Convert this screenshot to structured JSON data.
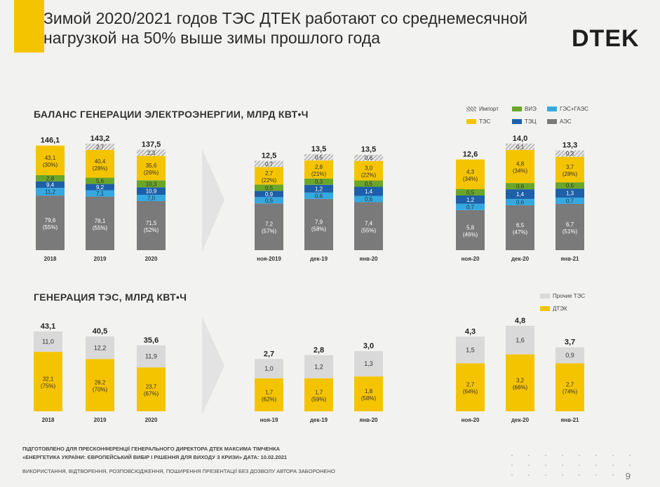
{
  "title": "Зимой 2020/2021 годов ТЭС ДТЕК работают со среднемесячной нагрузкой на 50% выше зимы прошлого года",
  "logo_text": "DTEK",
  "section1_title": "БАЛАНС ГЕНЕРАЦИИ ЭЛЕКТРОЭНЕРГИИ, МЛРД КВТ•Ч",
  "section2_title": "ГЕНЕРАЦИЯ ТЭС, МЛРД КВТ•Ч",
  "legend1": [
    {
      "name": "Импорт",
      "color": "hatch"
    },
    {
      "name": "ВИЭ",
      "color": "#6aa628"
    },
    {
      "name": "ГЭС+ГАЭС",
      "color": "#35a8e0"
    },
    {
      "name": "ТЭС",
      "color": "#f5c400"
    },
    {
      "name": "ТЭЦ",
      "color": "#1d5fa8"
    },
    {
      "name": "АЭС",
      "color": "#7a7a7a"
    }
  ],
  "legend2": [
    {
      "name": "Прочие ТЭС",
      "color": "#d9d9d9"
    },
    {
      "name": "ДТЭК",
      "color": "#f5c400"
    }
  ],
  "chart_data": [
    {
      "type": "bar",
      "stacked": true,
      "title": "БАЛАНС ГЕНЕРАЦИИ ЭЛЕКТРОЭНЕРГИИ, МЛРД КВТ•Ч",
      "groups": [
        {
          "categories": [
            "2018",
            "2019",
            "2020"
          ],
          "totals": [
            "146,1",
            "143,2",
            "137,5"
          ],
          "stacks": [
            [
              {
                "series": "АЭС",
                "value": 79.6,
                "label": "79,6",
                "pct": "(55%)"
              },
              {
                "series": "ГЭС+ГАЭС",
                "value": 11.2,
                "label": "11,2"
              },
              {
                "series": "ТЭЦ",
                "value": 9.4,
                "label": "9,4"
              },
              {
                "series": "ВИЭ",
                "value": 2.8,
                "label": "2,8"
              },
              {
                "series": "ТЭС",
                "value": 43.1,
                "label": "43,1",
                "pct": "(30%)"
              }
            ],
            [
              {
                "series": "АЭС",
                "value": 78.1,
                "label": "78,1",
                "pct": "(55%)"
              },
              {
                "series": "ГЭС+ГАЭС",
                "value": 7.1,
                "label": "7,1"
              },
              {
                "series": "ТЭЦ",
                "value": 9.2,
                "label": "9,2"
              },
              {
                "series": "ВИЭ",
                "value": 5.6,
                "label": "5,6"
              },
              {
                "series": "ТЭС",
                "value": 40.4,
                "label": "40,4",
                "pct": "(28%)"
              },
              {
                "series": "Импорт",
                "value": 2.7,
                "label": "2,7"
              }
            ],
            [
              {
                "series": "АЭС",
                "value": 71.5,
                "label": "71,5",
                "pct": "(52%)"
              },
              {
                "series": "ГЭС+ГАЭС",
                "value": 7.0,
                "label": "7,0"
              },
              {
                "series": "ТЭЦ",
                "value": 10.9,
                "label": "10,9"
              },
              {
                "series": "ВИЭ",
                "value": 10.3,
                "label": "10,3"
              },
              {
                "series": "ТЭС",
                "value": 35.6,
                "label": "35,6",
                "pct": "(26%)"
              },
              {
                "series": "Импорт",
                "value": 2.3,
                "label": "2,3"
              }
            ]
          ]
        },
        {
          "categories": [
            "ноя-2019",
            "дек-19",
            "янв-20"
          ],
          "totals": [
            "12,5",
            "13,5",
            "13,5"
          ],
          "stacks": [
            [
              {
                "series": "АЭС",
                "value": 7.2,
                "label": "7,2",
                "pct": "(57%)"
              },
              {
                "series": "ГЭС+ГАЭС",
                "value": 0.5,
                "label": "0,5"
              },
              {
                "series": "ТЭЦ",
                "value": 0.9,
                "label": "0,9"
              },
              {
                "series": "ВИЭ",
                "value": 0.5,
                "label": "0,5"
              },
              {
                "series": "ТЭС",
                "value": 2.7,
                "label": "2,7",
                "pct": "(22%)"
              },
              {
                "series": "Импорт",
                "value": 0.7,
                "label": "0,7"
              }
            ],
            [
              {
                "series": "АЭС",
                "value": 7.9,
                "label": "7,9",
                "pct": "(58%)"
              },
              {
                "series": "ГЭС+ГАЭС",
                "value": 0.6,
                "label": "0,6"
              },
              {
                "series": "ТЭЦ",
                "value": 1.2,
                "label": "1,2"
              },
              {
                "series": "ВИЭ",
                "value": 0.3,
                "label": "0,3"
              },
              {
                "series": "ТЭС",
                "value": 2.8,
                "label": "2,8",
                "pct": "(21%)"
              },
              {
                "series": "Импорт",
                "value": 0.5,
                "label": "0,5"
              }
            ],
            [
              {
                "series": "АЭС",
                "value": 7.4,
                "label": "7,4",
                "pct": "(55%)"
              },
              {
                "series": "ГЭС+ГАЭС",
                "value": 0.6,
                "label": "0,6"
              },
              {
                "series": "ТЭЦ",
                "value": 1.4,
                "label": "1,4"
              },
              {
                "series": "ВИЭ",
                "value": 0.5,
                "label": "0,5"
              },
              {
                "series": "ТЭС",
                "value": 3.0,
                "label": "3,0",
                "pct": "(22%)"
              },
              {
                "series": "Импорт",
                "value": 0.6,
                "label": "0,6"
              }
            ]
          ]
        },
        {
          "categories": [
            "ноя-20",
            "дек-20",
            "янв-21"
          ],
          "totals": [
            "12,6",
            "14,0",
            "13,3"
          ],
          "stacks": [
            [
              {
                "series": "АЭС",
                "value": 5.8,
                "label": "5,8",
                "pct": "(46%)"
              },
              {
                "series": "ГЭС+ГАЭС",
                "value": 0.7,
                "label": "0,7"
              },
              {
                "series": "ТЭЦ",
                "value": 1.2,
                "label": "1,2"
              },
              {
                "series": "ВИЭ",
                "value": 0.5,
                "label": "0,5"
              },
              {
                "series": "ТЭС",
                "value": 4.3,
                "label": "4,3",
                "pct": "(34%)"
              }
            ],
            [
              {
                "series": "АЭС",
                "value": 6.5,
                "label": "6,5",
                "pct": "(47%)"
              },
              {
                "series": "ГЭС+ГАЭС",
                "value": 0.6,
                "label": "0,6"
              },
              {
                "series": "ТЭЦ",
                "value": 1.4,
                "label": "1,4"
              },
              {
                "series": "ВИЭ",
                "value": 0.6,
                "label": "0,6"
              },
              {
                "series": "ТЭС",
                "value": 4.8,
                "label": "4,8",
                "pct": "(34%)"
              },
              {
                "series": "Импорт",
                "value": 0.1,
                "label": "0,1"
              }
            ],
            [
              {
                "series": "АЭС",
                "value": 6.7,
                "label": "6,7",
                "pct": "(51%)"
              },
              {
                "series": "ГЭС+ГАЭС",
                "value": 0.7,
                "label": "0,7"
              },
              {
                "series": "ТЭЦ",
                "value": 1.3,
                "label": "1,3"
              },
              {
                "series": "ВИЭ",
                "value": 0.6,
                "label": "0,6"
              },
              {
                "series": "ТЭС",
                "value": 3.7,
                "label": "3,7",
                "pct": "(28%)"
              },
              {
                "series": "Импорт",
                "value": 0.3,
                "label": "0,3"
              }
            ]
          ]
        }
      ]
    },
    {
      "type": "bar",
      "stacked": true,
      "title": "ГЕНЕРАЦИЯ ТЭС, МЛРД КВТ•Ч",
      "groups": [
        {
          "categories": [
            "2018",
            "2019",
            "2020"
          ],
          "totals": [
            "43,1",
            "40,5",
            "35,6"
          ],
          "stacks": [
            [
              {
                "series": "ДТЭК",
                "value": 32.1,
                "label": "32,1",
                "pct": "(75%)"
              },
              {
                "series": "Прочие ТЭС",
                "value": 11.0,
                "label": "11,0"
              }
            ],
            [
              {
                "series": "ДТЭК",
                "value": 28.2,
                "label": "28,2",
                "pct": "(70%)"
              },
              {
                "series": "Прочие ТЭС",
                "value": 12.2,
                "label": "12,2"
              }
            ],
            [
              {
                "series": "ДТЭК",
                "value": 23.7,
                "label": "23,7",
                "pct": "(67%)"
              },
              {
                "series": "Прочие ТЭС",
                "value": 11.9,
                "label": "11,9"
              }
            ]
          ]
        },
        {
          "categories": [
            "ноя-19",
            "дек-19",
            "янв-20"
          ],
          "totals": [
            "2,7",
            "2,8",
            "3,0"
          ],
          "stacks": [
            [
              {
                "series": "ДТЭК",
                "value": 1.7,
                "label": "1,7",
                "pct": "(62%)"
              },
              {
                "series": "Прочие ТЭС",
                "value": 1.0,
                "label": "1,0"
              }
            ],
            [
              {
                "series": "ДТЭК",
                "value": 1.7,
                "label": "1,7",
                "pct": "(59%)"
              },
              {
                "series": "Прочие ТЭС",
                "value": 1.2,
                "label": "1,2"
              }
            ],
            [
              {
                "series": "ДТЭК",
                "value": 1.8,
                "label": "1,8",
                "pct": "(58%)"
              },
              {
                "series": "Прочие ТЭС",
                "value": 1.3,
                "label": "1,3"
              }
            ]
          ]
        },
        {
          "categories": [
            "ноя-20",
            "дек-20",
            "янв-21"
          ],
          "totals": [
            "4,3",
            "4,8",
            "3,7"
          ],
          "stacks": [
            [
              {
                "series": "ДТЭК",
                "value": 2.7,
                "label": "2,7",
                "pct": "(64%)"
              },
              {
                "series": "Прочие ТЭС",
                "value": 1.5,
                "label": "1,5"
              }
            ],
            [
              {
                "series": "ДТЭК",
                "value": 3.2,
                "label": "3,2",
                "pct": "(66%)"
              },
              {
                "series": "Прочие ТЭС",
                "value": 1.6,
                "label": "1,6"
              }
            ],
            [
              {
                "series": "ДТЭК",
                "value": 2.7,
                "label": "2,7",
                "pct": "(74%)"
              },
              {
                "series": "Прочие ТЭС",
                "value": 0.9,
                "label": "0,9"
              }
            ]
          ]
        }
      ]
    }
  ],
  "footer": {
    "line1": "ПІДГОТОВЛЕНО ДЛЯ ПРЕСКОНФЕРЕНЦІЇ ГЕНЕРАЛЬНОГО ДИРЕКТОРА ДТЕК МАКСИМА ТІМЧЕНКА",
    "line2": "«ЕНЕРГЕТИКА УКРАЇНИ: ЄВРОПЕЙСЬКИЙ ВИБІР І РІШЕННЯ ДЛЯ ВИХОДУ З КРИЗИ» ДАТА: 10.02.2021",
    "line3": "ВИКОРИСТАННЯ, ВІДТВОРЕННЯ, РОЗПОВСЮДЖЕННЯ, ПОШИРЕННЯ ПРЕЗЕНТАЦІЇ БЕЗ ДОЗВОЛУ АВТОРА ЗАБОРОНЕНО"
  },
  "page_number": "9"
}
